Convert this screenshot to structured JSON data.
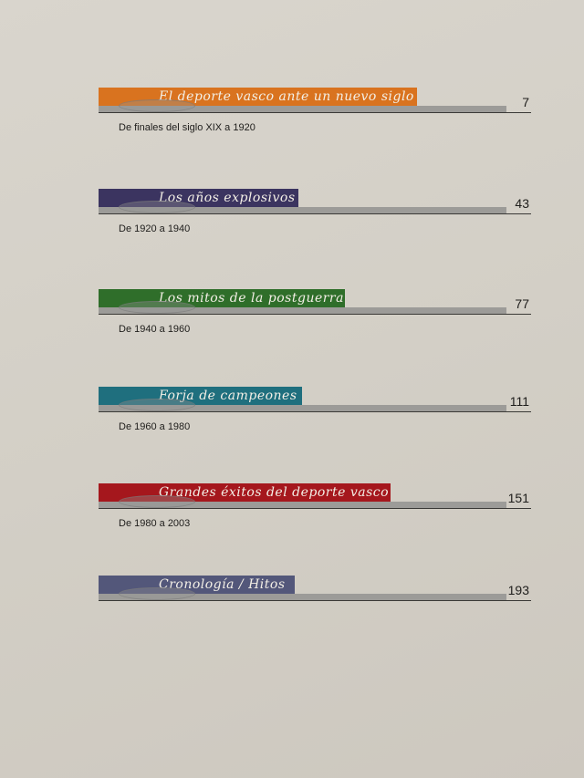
{
  "toc": [
    {
      "title": "El deporte vasco  ante un nuevo siglo",
      "subtitle": "De finales del siglo XIX a 1920",
      "page": "7",
      "color": "#d9731f"
    },
    {
      "title": "Los años explosivos",
      "subtitle": "De 1920 a 1940",
      "page": "43",
      "color": "#3b3460"
    },
    {
      "title": "Los mitos de la postguerra",
      "subtitle": "De 1940 a 1960",
      "page": "77",
      "color": "#2f6e2a"
    },
    {
      "title": "Forja de campeones",
      "subtitle": "De 1960 a 1980",
      "page": "111",
      "color": "#1f6f7e"
    },
    {
      "title": "Grandes éxitos del deporte vasco",
      "subtitle": "De 1980 a 2003",
      "page": "151",
      "color": "#a5171d"
    },
    {
      "title": "Cronología / Hitos",
      "subtitle": "",
      "page": "193",
      "color": "#53577a"
    }
  ]
}
